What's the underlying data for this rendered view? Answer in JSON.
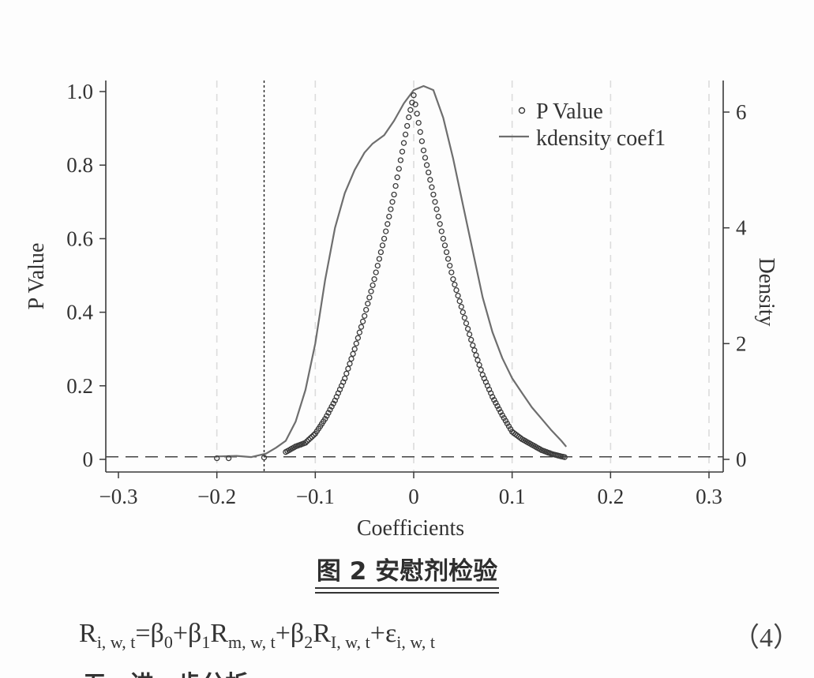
{
  "chart_data": {
    "type": "scatter",
    "xlabel": "Coefficients",
    "ylabel_left": "P Value",
    "ylabel_right": "Density",
    "xlim": [
      -0.3,
      0.3
    ],
    "ylim_left": [
      0,
      1.0
    ],
    "ylim_right": [
      0,
      6
    ],
    "x_ticks": [
      -0.3,
      -0.2,
      -0.1,
      0,
      0.1,
      0.2,
      0.3
    ],
    "x_tick_labels": [
      "−0.3",
      "−0.2",
      "−0.1",
      "0",
      "0.1",
      "0.2",
      "0.3"
    ],
    "y_left_ticks": [
      0,
      0.2,
      0.4,
      0.6,
      0.8,
      1.0
    ],
    "y_left_tick_labels": [
      "0",
      "0.2",
      "0.4",
      "0.6",
      "0.8",
      "1.0"
    ],
    "y_right_ticks": [
      0,
      2,
      4,
      6
    ],
    "y_right_tick_labels": [
      "0",
      "2",
      "4",
      "6"
    ],
    "grid": "vertical dashed",
    "reference_lines": {
      "vertical_x": -0.152,
      "horizontal_p": 0.007
    },
    "legend": {
      "placement": "top-right",
      "entries": [
        "P Value",
        "kdensity coef1"
      ]
    },
    "series": [
      {
        "name": "P Value",
        "kind": "points",
        "left_branch_x": [
          -0.13,
          -0.12,
          -0.11,
          -0.1,
          -0.09,
          -0.08,
          -0.07,
          -0.06,
          -0.05,
          -0.04,
          -0.03,
          -0.02,
          -0.01,
          -0.005,
          0.0
        ],
        "left_branch_p": [
          0.02,
          0.035,
          0.045,
          0.07,
          0.11,
          0.16,
          0.22,
          0.3,
          0.39,
          0.49,
          0.6,
          0.72,
          0.86,
          0.93,
          0.99
        ],
        "right_branch_x": [
          0.0,
          0.01,
          0.02,
          0.03,
          0.04,
          0.05,
          0.06,
          0.07,
          0.08,
          0.09,
          0.1,
          0.11,
          0.12,
          0.13,
          0.14,
          0.15,
          0.155
        ],
        "right_branch_p": [
          0.99,
          0.84,
          0.72,
          0.6,
          0.49,
          0.4,
          0.31,
          0.23,
          0.17,
          0.12,
          0.075,
          0.055,
          0.04,
          0.025,
          0.015,
          0.008,
          0.005
        ],
        "isolated_x": [
          -0.2,
          -0.188,
          -0.152
        ],
        "isolated_p": [
          0.003,
          0.003,
          0.005
        ]
      },
      {
        "name": "kdensity coef1",
        "kind": "line",
        "x": [
          -0.2,
          -0.18,
          -0.165,
          -0.15,
          -0.14,
          -0.13,
          -0.12,
          -0.11,
          -0.1,
          -0.09,
          -0.08,
          -0.07,
          -0.06,
          -0.05,
          -0.042,
          -0.03,
          -0.02,
          -0.01,
          0.0,
          0.01,
          0.02,
          0.03,
          0.04,
          0.05,
          0.06,
          0.07,
          0.08,
          0.09,
          0.1,
          0.11,
          0.12,
          0.13,
          0.14,
          0.15,
          0.155
        ],
        "density": [
          0.05,
          0.06,
          0.04,
          0.1,
          0.2,
          0.32,
          0.65,
          1.2,
          2.0,
          3.1,
          4.0,
          4.6,
          5.0,
          5.3,
          5.45,
          5.6,
          5.85,
          6.15,
          6.38,
          6.45,
          6.38,
          5.9,
          5.2,
          4.4,
          3.6,
          2.8,
          2.2,
          1.75,
          1.4,
          1.15,
          0.9,
          0.7,
          0.5,
          0.32,
          0.22
        ]
      }
    ]
  },
  "caption": "图 2  安慰剂检验",
  "equation": {
    "r": "R",
    "r_sub": "i, w, t",
    "b0": "=β",
    "b0_sub": "0",
    "b1": "+β",
    "b1_sub": "1",
    "rm": "R",
    "rm_sub": "m, w, t",
    "b2": "+β",
    "b2_sub": "2",
    "ri": "R",
    "ri_sub": "I, w, t",
    "eps": "+ε",
    "eps_sub": "i, w, t"
  },
  "equation_number": "（4）",
  "partial_line": "五、进一步分析"
}
